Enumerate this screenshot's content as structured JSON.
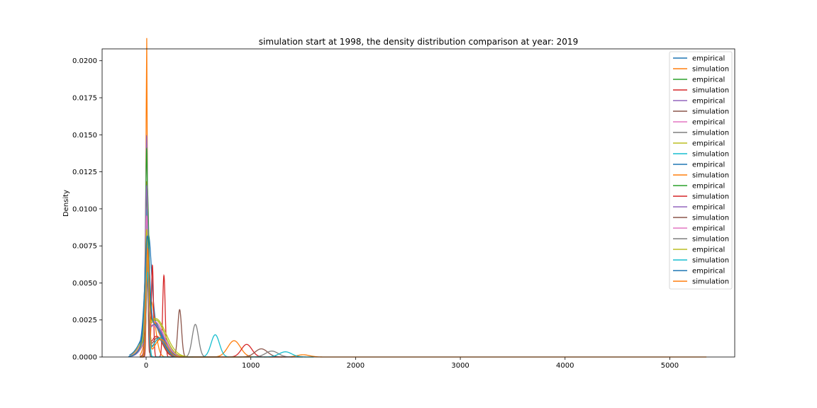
{
  "chart_data": {
    "type": "line",
    "title": "simulation start at 1998, the density distribution comparison at year: 2019",
    "xlabel": "",
    "ylabel": "Density",
    "xlim": [
      -420,
      5620
    ],
    "ylim": [
      0,
      0.0208
    ],
    "x_ticks": [
      0,
      1000,
      2000,
      3000,
      4000,
      5000
    ],
    "x_tick_labels": [
      "0",
      "1000",
      "2000",
      "3000",
      "4000",
      "5000"
    ],
    "y_ticks": [
      0.0,
      0.0025,
      0.005,
      0.0075,
      0.01,
      0.0125,
      0.015,
      0.0175,
      0.02
    ],
    "y_tick_labels": [
      "0.0000",
      "0.0025",
      "0.0050",
      "0.0075",
      "0.0100",
      "0.0125",
      "0.0150",
      "0.0175",
      "0.0200"
    ],
    "grid": false,
    "legend_position": "upper right",
    "palette": [
      "#1f77b4",
      "#ff7f0e",
      "#2ca02c",
      "#d62728",
      "#9467bd",
      "#8c564b",
      "#e377c2",
      "#7f7f7f",
      "#bcbd22",
      "#17becf"
    ],
    "series": [
      {
        "name": "empirical",
        "color": "#1f77b4",
        "x_range": [
          -160,
          420
        ],
        "components": [
          {
            "mu": 20,
            "sd": 30,
            "h": 0.0063
          },
          {
            "mu": 60,
            "sd": 80,
            "h": 0.0022
          }
        ]
      },
      {
        "name": "simulation",
        "color": "#ff7f0e",
        "x_range": [
          -60,
          5350
        ],
        "components": [
          {
            "mu": 5,
            "sd": 6,
            "h": 0.0195
          },
          {
            "mu": 45,
            "sd": 40,
            "h": 0.0038
          },
          {
            "mu": 840,
            "sd": 60,
            "h": 0.0011
          },
          {
            "mu": 1500,
            "sd": 60,
            "h": 0.00015
          }
        ]
      },
      {
        "name": "empirical",
        "color": "#2ca02c",
        "x_range": [
          -150,
          450
        ],
        "components": [
          {
            "mu": 10,
            "sd": 16,
            "h": 0.0098
          },
          {
            "mu": 90,
            "sd": 90,
            "h": 0.0025
          }
        ]
      },
      {
        "name": "simulation",
        "color": "#d62728",
        "x_range": [
          -60,
          1300
        ],
        "components": [
          {
            "mu": 10,
            "sd": 8,
            "h": 0.0082
          },
          {
            "mu": 60,
            "sd": 10,
            "h": 0.0062
          },
          {
            "mu": 170,
            "sd": 12,
            "h": 0.0055
          },
          {
            "mu": 960,
            "sd": 50,
            "h": 0.00085
          }
        ]
      },
      {
        "name": "empirical",
        "color": "#9467bd",
        "x_range": [
          -140,
          450
        ],
        "components": [
          {
            "mu": 5,
            "sd": 10,
            "h": 0.0135
          },
          {
            "mu": 80,
            "sd": 80,
            "h": 0.0022
          }
        ]
      },
      {
        "name": "simulation",
        "color": "#8c564b",
        "x_range": [
          -60,
          1400
        ],
        "components": [
          {
            "mu": 10,
            "sd": 10,
            "h": 0.008
          },
          {
            "mu": 320,
            "sd": 18,
            "h": 0.0032
          },
          {
            "mu": 1100,
            "sd": 60,
            "h": 0.00055
          }
        ]
      },
      {
        "name": "empirical",
        "color": "#e377c2",
        "x_range": [
          -150,
          450
        ],
        "components": [
          {
            "mu": 5,
            "sd": 12,
            "h": 0.012
          },
          {
            "mu": 70,
            "sd": 90,
            "h": 0.0021
          }
        ]
      },
      {
        "name": "simulation",
        "color": "#7f7f7f",
        "x_range": [
          -60,
          1500
        ],
        "components": [
          {
            "mu": 10,
            "sd": 12,
            "h": 0.0075
          },
          {
            "mu": 470,
            "sd": 30,
            "h": 0.0022
          },
          {
            "mu": 1200,
            "sd": 60,
            "h": 0.0004
          }
        ]
      },
      {
        "name": "empirical",
        "color": "#bcbd22",
        "x_range": [
          -150,
          450
        ],
        "components": [
          {
            "mu": 5,
            "sd": 14,
            "h": 0.0068
          },
          {
            "mu": 90,
            "sd": 100,
            "h": 0.0026
          }
        ]
      },
      {
        "name": "simulation",
        "color": "#17becf",
        "x_range": [
          -60,
          1600
        ],
        "components": [
          {
            "mu": 10,
            "sd": 14,
            "h": 0.01
          },
          {
            "mu": 660,
            "sd": 40,
            "h": 0.0015
          },
          {
            "mu": 1330,
            "sd": 60,
            "h": 0.00035
          }
        ]
      },
      {
        "name": "empirical",
        "color": "#1f77b4",
        "x_range": [
          -160,
          450
        ],
        "components": [
          {
            "mu": 5,
            "sd": 12,
            "h": 0.0095
          },
          {
            "mu": 60,
            "sd": 90,
            "h": 0.0025
          }
        ]
      },
      {
        "name": "simulation",
        "color": "#ff7f0e",
        "x_range": [
          -60,
          1000
        ],
        "components": [
          {
            "mu": 5,
            "sd": 12,
            "h": 0.01
          },
          {
            "mu": 60,
            "sd": 70,
            "h": 0.0025
          }
        ]
      },
      {
        "name": "empirical",
        "color": "#2ca02c",
        "x_range": [
          -150,
          450
        ],
        "components": [
          {
            "mu": 5,
            "sd": 10,
            "h": 0.0125
          },
          {
            "mu": 80,
            "sd": 90,
            "h": 0.0022
          }
        ]
      },
      {
        "name": "simulation",
        "color": "#d62728",
        "x_range": [
          -60,
          700
        ],
        "components": [
          {
            "mu": 10,
            "sd": 14,
            "h": 0.0052
          },
          {
            "mu": 100,
            "sd": 60,
            "h": 0.0014
          }
        ]
      },
      {
        "name": "empirical",
        "color": "#9467bd",
        "x_range": [
          -150,
          450
        ],
        "components": [
          {
            "mu": 5,
            "sd": 12,
            "h": 0.01
          },
          {
            "mu": 80,
            "sd": 90,
            "h": 0.0022
          }
        ]
      },
      {
        "name": "simulation",
        "color": "#8c564b",
        "x_range": [
          -60,
          700
        ],
        "components": [
          {
            "mu": 15,
            "sd": 14,
            "h": 0.005
          },
          {
            "mu": 110,
            "sd": 60,
            "h": 0.0013
          }
        ]
      },
      {
        "name": "empirical",
        "color": "#e377c2",
        "x_range": [
          -150,
          450
        ],
        "components": [
          {
            "mu": 5,
            "sd": 12,
            "h": 0.0078
          },
          {
            "mu": 80,
            "sd": 90,
            "h": 0.0024
          }
        ]
      },
      {
        "name": "simulation",
        "color": "#7f7f7f",
        "x_range": [
          -60,
          700
        ],
        "components": [
          {
            "mu": 15,
            "sd": 14,
            "h": 0.006
          },
          {
            "mu": 120,
            "sd": 60,
            "h": 0.0012
          }
        ]
      },
      {
        "name": "empirical",
        "color": "#bcbd22",
        "x_range": [
          -150,
          450
        ],
        "components": [
          {
            "mu": 5,
            "sd": 14,
            "h": 0.007
          },
          {
            "mu": 90,
            "sd": 90,
            "h": 0.0025
          }
        ]
      },
      {
        "name": "simulation",
        "color": "#17becf",
        "x_range": [
          -60,
          700
        ],
        "components": [
          {
            "mu": 15,
            "sd": 14,
            "h": 0.0055
          },
          {
            "mu": 130,
            "sd": 60,
            "h": 0.0013
          }
        ]
      },
      {
        "name": "empirical",
        "color": "#1f77b4",
        "x_range": [
          -170,
          450
        ],
        "components": [
          {
            "mu": 10,
            "sd": 22,
            "h": 0.0065
          },
          {
            "mu": 70,
            "sd": 80,
            "h": 0.0022
          }
        ]
      },
      {
        "name": "simulation",
        "color": "#ff7f0e",
        "x_range": [
          -60,
          700
        ],
        "components": [
          {
            "mu": 15,
            "sd": 14,
            "h": 0.0072
          },
          {
            "mu": 140,
            "sd": 60,
            "h": 0.0012
          }
        ]
      }
    ]
  }
}
